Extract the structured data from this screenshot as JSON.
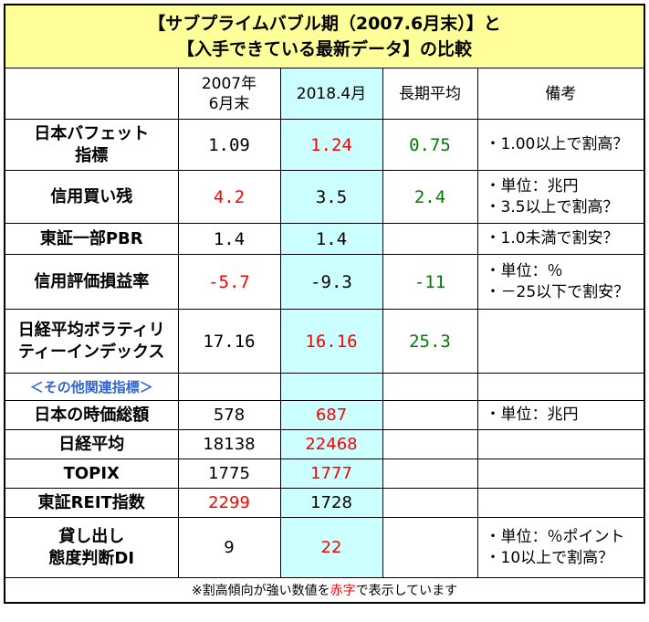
{
  "title": {
    "line1": "【サブプライムバブル期（2007.6月末）】と",
    "line2": "【入手できている最新データ】の比較"
  },
  "headers": {
    "col_2007_line1": "2007年",
    "col_2007_line2": "6月末",
    "col_2018": "2018.4月",
    "col_longterm": "長期平均",
    "col_notes": "備考"
  },
  "rows": [
    {
      "label_line1": "日本バフェット",
      "label_line2": "指標",
      "v2007": "1.09",
      "v2018": "1.24",
      "avg": "0.75",
      "note_line1": "・1.00以上で割高？",
      "note_line2": ""
    },
    {
      "label_line1": "信用買い残",
      "label_line2": "",
      "v2007": "4.2",
      "v2018": "3.5",
      "avg": "2.4",
      "note_line1": "・単位：兆円",
      "note_line2": "・3.5以上で割高？"
    },
    {
      "label_line1": "東証一部PBR",
      "label_line2": "",
      "v2007": "1.4",
      "v2018": "1.4",
      "avg": "",
      "note_line1": "・1.0未満で割安？",
      "note_line2": ""
    },
    {
      "label_line1": "信用評価損益率",
      "label_line2": "",
      "v2007": "-5.7",
      "v2018": "-9.3",
      "avg": "-11",
      "note_line1": "・単位：％",
      "note_line2": "・－25以下で割安？"
    },
    {
      "label_line1": "日経平均ボラティリ",
      "label_line2": "ティーインデックス",
      "v2007": "17.16",
      "v2018": "16.16",
      "avg": "25.3",
      "note_line1": "",
      "note_line2": ""
    }
  ],
  "other_section_label": "＜その他関連指標＞",
  "other_rows": [
    {
      "label_line1": "日本の時価総額",
      "label_line2": "",
      "v2007": "578",
      "v2018": "687",
      "note_line1": "・単位：兆円",
      "note_line2": ""
    },
    {
      "label_line1": "日経平均",
      "label_line2": "",
      "v2007": "18138",
      "v2018": "22468",
      "note_line1": "",
      "note_line2": ""
    },
    {
      "label_line1": "TOPIX",
      "label_line2": "",
      "v2007": "1775",
      "v2018": "1777",
      "note_line1": "",
      "note_line2": ""
    },
    {
      "label_line1": "東証REIT指数",
      "label_line2": "",
      "v2007": "2299",
      "v2018": "1728",
      "note_line1": "",
      "note_line2": ""
    },
    {
      "label_line1": "貸し出し",
      "label_line2": "態度判断DI",
      "v2007": "9",
      "v2018": "22",
      "note_line1": "・単位：％ポイント",
      "note_line2": "・10以上で割高？"
    }
  ],
  "footer": {
    "part1": "※割高傾向が強い数値を",
    "part2": "赤字",
    "part3": "で表示しています"
  },
  "colors": {
    "title_bg": "#ffff99",
    "highlight_col_bg": "#ccffff",
    "overvalued_text": "#ff0000",
    "longterm_avg_text": "#007a00",
    "section_label_text": "#3366cc"
  }
}
